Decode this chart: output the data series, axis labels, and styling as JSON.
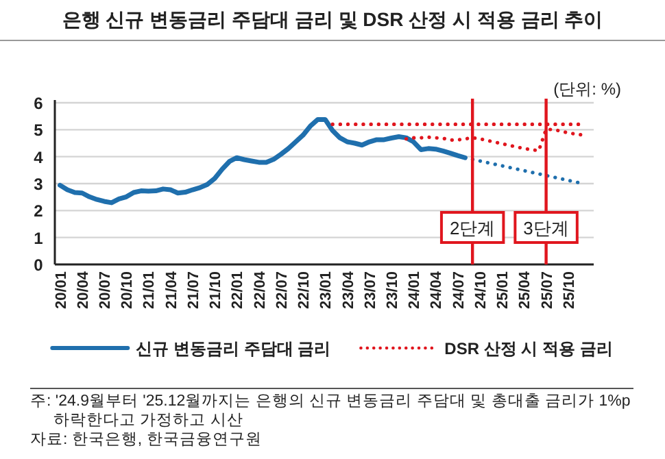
{
  "chart_data": {
    "type": "line",
    "title": "은행 신규 변동금리 주담대 금리 및 DSR 산정 시 적용 금리 추이",
    "ylabel": "(단위: %)",
    "x": [
      "2020-01",
      "2020-02",
      "2020-03",
      "2020-04",
      "2020-05",
      "2020-06",
      "2020-07",
      "2020-08",
      "2020-09",
      "2020-10",
      "2020-11",
      "2020-12",
      "2021-01",
      "2021-02",
      "2021-03",
      "2021-04",
      "2021-05",
      "2021-06",
      "2021-07",
      "2021-08",
      "2021-09",
      "2021-10",
      "2021-11",
      "2021-12",
      "2022-01",
      "2022-02",
      "2022-03",
      "2022-04",
      "2022-05",
      "2022-06",
      "2022-07",
      "2022-08",
      "2022-09",
      "2022-10",
      "2022-11",
      "2022-12",
      "2023-01",
      "2023-02",
      "2023-03",
      "2023-04",
      "2023-05",
      "2023-06",
      "2023-07",
      "2023-08",
      "2023-09",
      "2023-10",
      "2023-11",
      "2023-12",
      "2024-01",
      "2024-02",
      "2024-03",
      "2024-04",
      "2024-05",
      "2024-06",
      "2024-07",
      "2024-08",
      "2024-09",
      "2024-10",
      "2024-11",
      "2024-12",
      "2025-01",
      "2025-02",
      "2025-03",
      "2025-04",
      "2025-05",
      "2025-06",
      "2025-07",
      "2025-08",
      "2025-09",
      "2025-10",
      "2025-11",
      "2025-12"
    ],
    "series": [
      {
        "name": "신규 변동금리 주담대 금리",
        "color": "#1f6fad",
        "line_style": "solid",
        "values": [
          2.94,
          2.77,
          2.67,
          2.65,
          2.51,
          2.41,
          2.34,
          2.29,
          2.43,
          2.51,
          2.67,
          2.73,
          2.72,
          2.73,
          2.8,
          2.77,
          2.65,
          2.68,
          2.77,
          2.85,
          2.97,
          3.19,
          3.53,
          3.82,
          3.96,
          3.89,
          3.84,
          3.79,
          3.79,
          3.9,
          4.09,
          4.3,
          4.55,
          4.8,
          5.14,
          5.38,
          5.38,
          4.97,
          4.7,
          4.55,
          4.5,
          4.43,
          4.55,
          4.63,
          4.63,
          4.69,
          4.74,
          4.7,
          4.55,
          4.26,
          4.3,
          4.28,
          4.21,
          4.13,
          4.04,
          3.96,
          null,
          null,
          null,
          null,
          null,
          null,
          null,
          null,
          null,
          null,
          null,
          null,
          null,
          null,
          null,
          null
        ]
      },
      {
        "color": "#1f6fad",
        "line_style": "dotted",
        "values": [
          null,
          null,
          null,
          null,
          null,
          null,
          null,
          null,
          null,
          null,
          null,
          null,
          null,
          null,
          null,
          null,
          null,
          null,
          null,
          null,
          null,
          null,
          null,
          null,
          null,
          null,
          null,
          null,
          null,
          null,
          null,
          null,
          null,
          null,
          null,
          null,
          null,
          null,
          null,
          null,
          null,
          null,
          null,
          null,
          null,
          null,
          null,
          null,
          null,
          null,
          null,
          null,
          null,
          null,
          null,
          3.96,
          3.9,
          3.84,
          3.78,
          3.72,
          3.66,
          3.6,
          3.54,
          3.48,
          3.42,
          3.36,
          3.3,
          3.24,
          3.18,
          3.12,
          3.06,
          3.0
        ]
      },
      {
        "name": "DSR 산정 시 적용 금리",
        "color": "#e0161e",
        "line_style": "dotted",
        "values": [
          null,
          null,
          null,
          null,
          null,
          null,
          null,
          null,
          null,
          null,
          null,
          null,
          null,
          null,
          null,
          null,
          null,
          null,
          null,
          null,
          null,
          null,
          null,
          null,
          null,
          null,
          null,
          null,
          null,
          null,
          null,
          null,
          null,
          null,
          null,
          null,
          null,
          null,
          null,
          null,
          null,
          null,
          null,
          null,
          null,
          null,
          null,
          4.66,
          4.7,
          4.7,
          4.72,
          4.7,
          4.68,
          4.62,
          4.62,
          4.66,
          4.7,
          4.66,
          4.6,
          4.54,
          4.48,
          4.42,
          4.36,
          4.3,
          4.26,
          4.22,
          5.02,
          5.0,
          4.95,
          4.88,
          4.84,
          4.8
        ]
      },
      {
        "color": "#e0161e",
        "line_style": "dotted",
        "values": [
          null,
          null,
          null,
          null,
          null,
          null,
          null,
          null,
          null,
          null,
          null,
          null,
          null,
          null,
          null,
          null,
          null,
          null,
          null,
          null,
          null,
          null,
          null,
          null,
          null,
          null,
          null,
          null,
          null,
          null,
          null,
          null,
          null,
          null,
          null,
          null,
          null,
          5.2,
          5.2,
          5.2,
          5.2,
          5.2,
          5.2,
          5.2,
          5.2,
          5.2,
          5.2,
          5.2,
          5.2,
          5.2,
          5.2,
          5.2,
          5.2,
          5.2,
          5.2,
          5.2,
          5.2,
          5.2,
          5.2,
          5.2,
          5.2,
          5.2,
          5.2,
          5.2,
          5.2,
          5.2,
          5.2,
          5.2,
          5.2,
          5.2,
          5.2,
          5.2
        ]
      }
    ],
    "xlim": [
      "2019-12-10",
      "2026-01-15"
    ],
    "xticks": [
      {
        "value": "2020-01",
        "label": "20/01"
      },
      {
        "value": "2020-04",
        "label": "20/04"
      },
      {
        "value": "2020-07",
        "label": "20/07"
      },
      {
        "value": "2020-10",
        "label": "20/10"
      },
      {
        "value": "2021-01",
        "label": "21/01"
      },
      {
        "value": "2021-04",
        "label": "21/04"
      },
      {
        "value": "2021-07",
        "label": "21/07"
      },
      {
        "value": "2021-10",
        "label": "21/10"
      },
      {
        "value": "2022-01",
        "label": "22/01"
      },
      {
        "value": "2022-04",
        "label": "22/04"
      },
      {
        "value": "2022-07",
        "label": "22/07"
      },
      {
        "value": "2022-10",
        "label": "22/10"
      },
      {
        "value": "2023-01",
        "label": "23/01"
      },
      {
        "value": "2023-04",
        "label": "23/04"
      },
      {
        "value": "2023-07",
        "label": "23/07"
      },
      {
        "value": "2023-10",
        "label": "23/10"
      },
      {
        "value": "2024-01",
        "label": "24/01"
      },
      {
        "value": "2024-04",
        "label": "24/04"
      },
      {
        "value": "2024-07",
        "label": "24/07"
      },
      {
        "value": "2024-10",
        "label": "24/10"
      },
      {
        "value": "2025-01",
        "label": "25/01"
      },
      {
        "value": "2025-04",
        "label": "25/04"
      },
      {
        "value": "2025-07",
        "label": "25/07"
      },
      {
        "value": "2025-10",
        "label": "25/10"
      }
    ],
    "ylim": [
      0,
      6
    ],
    "yticks": [
      0,
      1,
      2,
      3,
      4,
      5,
      6
    ],
    "grid": "y",
    "legend": "bottom",
    "ref_lines": [
      {
        "axis": "x",
        "value": "2024-09",
        "label": "2단계",
        "color": "#e0161e"
      },
      {
        "axis": "x",
        "value": "2025-07",
        "label": "3단계",
        "color": "#e0161e"
      }
    ],
    "annotations": [
      "주: '24.9월부터 '25.12월까지는 은행의 신규 변동금리 주담대 및 총대출 금리가 1%p 하락한다고 가정하고 시산",
      "자료: 한국은행, 한국금융연구원"
    ]
  }
}
